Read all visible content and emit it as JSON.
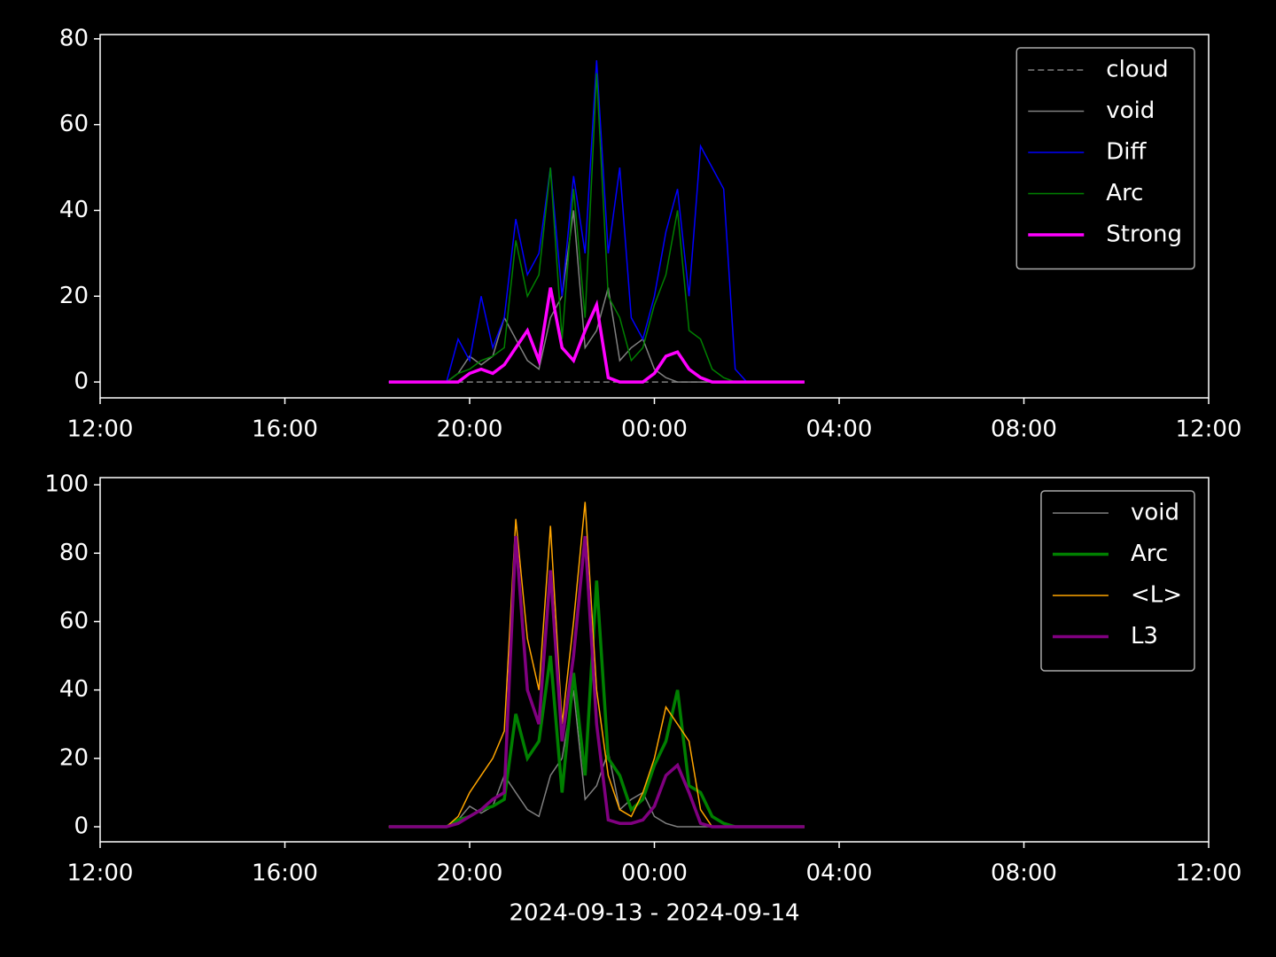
{
  "chart_data": [
    {
      "type": "line",
      "x": [
        18.25,
        18.5,
        18.75,
        19,
        19.25,
        19.5,
        19.75,
        20,
        20.25,
        20.5,
        20.75,
        21,
        21.25,
        21.5,
        21.75,
        22,
        22.25,
        22.5,
        22.75,
        23,
        23.25,
        23.5,
        23.75,
        24,
        24.25,
        24.5,
        24.75,
        25,
        25.25,
        25.5,
        25.75,
        26,
        26.25,
        26.5,
        26.75,
        27,
        27.25
      ],
      "series": [
        {
          "name": "cloud",
          "color": "#808080",
          "linestyle": "dashed",
          "linewidth": 1.5,
          "values": [
            0,
            0,
            0,
            0,
            0,
            0,
            0,
            0,
            0,
            0,
            0,
            0,
            0,
            0,
            0,
            0,
            0,
            0,
            0,
            0,
            0,
            0,
            0,
            0,
            0,
            0,
            0,
            0,
            0,
            0,
            0,
            0,
            0,
            0,
            0,
            0,
            0
          ]
        },
        {
          "name": "void",
          "color": "#808080",
          "linestyle": "solid",
          "linewidth": 1.5,
          "values": [
            0,
            0,
            0,
            0,
            0,
            0,
            2,
            6,
            4,
            6,
            15,
            10,
            5,
            3,
            15,
            20,
            40,
            8,
            12,
            22,
            5,
            8,
            10,
            3,
            1,
            0,
            0,
            0,
            0,
            0,
            0,
            0,
            0,
            0,
            0,
            0,
            0
          ]
        },
        {
          "name": "Diff",
          "color": "#0000ff",
          "linestyle": "solid",
          "linewidth": 1.5,
          "values": [
            0,
            0,
            0,
            0,
            0,
            0,
            10,
            5,
            20,
            8,
            15,
            38,
            25,
            30,
            50,
            20,
            48,
            30,
            75,
            30,
            50,
            15,
            10,
            20,
            35,
            45,
            20,
            55,
            50,
            45,
            3,
            0,
            0,
            0,
            0,
            0,
            0
          ]
        },
        {
          "name": "Arc",
          "color": "#008000",
          "linestyle": "solid",
          "linewidth": 1.5,
          "values": [
            0,
            0,
            0,
            0,
            0,
            0,
            2,
            3,
            5,
            6,
            8,
            33,
            20,
            25,
            50,
            10,
            45,
            15,
            72,
            20,
            15,
            5,
            8,
            18,
            25,
            40,
            12,
            10,
            3,
            1,
            0,
            0,
            0,
            0,
            0,
            0,
            0
          ]
        },
        {
          "name": "Strong",
          "color": "#ff00ff",
          "linestyle": "solid",
          "linewidth": 3.5,
          "values": [
            0,
            0,
            0,
            0,
            0,
            0,
            0,
            2,
            3,
            2,
            4,
            8,
            12,
            5,
            22,
            8,
            5,
            12,
            18,
            1,
            0,
            0,
            0,
            2,
            6,
            7,
            3,
            1,
            0,
            0,
            0,
            0,
            0,
            0,
            0,
            0,
            0
          ]
        }
      ],
      "xlim": [
        12,
        36
      ],
      "xticks": [
        {
          "value": 12,
          "label": "12:00"
        },
        {
          "value": 16,
          "label": "16:00"
        },
        {
          "value": 20,
          "label": "20:00"
        },
        {
          "value": 24,
          "label": "00:00"
        },
        {
          "value": 28,
          "label": "04:00"
        },
        {
          "value": 32,
          "label": "08:00"
        },
        {
          "value": 36,
          "label": "12:00"
        }
      ],
      "ylim": [
        -3.7,
        81
      ],
      "yticks": [
        0,
        20,
        40,
        60,
        80
      ],
      "legend": "upper right"
    },
    {
      "type": "line",
      "x": [
        18.25,
        18.5,
        18.75,
        19,
        19.25,
        19.5,
        19.75,
        20,
        20.25,
        20.5,
        20.75,
        21,
        21.25,
        21.5,
        21.75,
        22,
        22.25,
        22.5,
        22.75,
        23,
        23.25,
        23.5,
        23.75,
        24,
        24.25,
        24.5,
        24.75,
        25,
        25.25,
        25.5,
        25.75,
        26,
        26.25,
        26.5,
        26.75,
        27,
        27.25
      ],
      "series": [
        {
          "name": "void",
          "color": "#808080",
          "linestyle": "solid",
          "linewidth": 1.5,
          "values": [
            0,
            0,
            0,
            0,
            0,
            0,
            2,
            6,
            4,
            6,
            15,
            10,
            5,
            3,
            15,
            20,
            40,
            8,
            12,
            22,
            5,
            8,
            10,
            3,
            1,
            0,
            0,
            0,
            0,
            0,
            0,
            0,
            0,
            0,
            0,
            0,
            0
          ]
        },
        {
          "name": "Arc",
          "color": "#008000",
          "linestyle": "solid",
          "linewidth": 3.5,
          "values": [
            0,
            0,
            0,
            0,
            0,
            0,
            2,
            3,
            5,
            6,
            8,
            33,
            20,
            25,
            50,
            10,
            45,
            15,
            72,
            20,
            15,
            5,
            8,
            18,
            25,
            40,
            12,
            10,
            3,
            1,
            0,
            0,
            0,
            0,
            0,
            0,
            0
          ]
        },
        {
          "name": "<L>",
          "color": "#ffa500",
          "linestyle": "solid",
          "linewidth": 1.5,
          "values": [
            0,
            0,
            0,
            0,
            0,
            0,
            3,
            10,
            15,
            20,
            28,
            90,
            55,
            40,
            88,
            30,
            60,
            95,
            40,
            15,
            5,
            3,
            10,
            20,
            35,
            30,
            25,
            5,
            0,
            0,
            0,
            0,
            0,
            0,
            0,
            0,
            0
          ]
        },
        {
          "name": "L3",
          "color": "#800080",
          "linestyle": "solid",
          "linewidth": 3.5,
          "values": [
            0,
            0,
            0,
            0,
            0,
            0,
            1,
            3,
            5,
            8,
            10,
            85,
            40,
            30,
            75,
            25,
            50,
            85,
            30,
            2,
            1,
            1,
            2,
            6,
            15,
            18,
            10,
            1,
            0,
            0,
            0,
            0,
            0,
            0,
            0,
            0,
            0
          ]
        }
      ],
      "xlim": [
        12,
        36
      ],
      "xticks": [
        {
          "value": 12,
          "label": "12:00"
        },
        {
          "value": 16,
          "label": "16:00"
        },
        {
          "value": 20,
          "label": "20:00"
        },
        {
          "value": 24,
          "label": "00:00"
        },
        {
          "value": 28,
          "label": "04:00"
        },
        {
          "value": 32,
          "label": "08:00"
        },
        {
          "value": 36,
          "label": "12:00"
        }
      ],
      "ylim": [
        -4.4,
        102.1
      ],
      "yticks": [
        0,
        20,
        40,
        60,
        80,
        100
      ],
      "xlabel": "2024-09-13 - 2024-09-14",
      "legend": "upper right"
    }
  ]
}
